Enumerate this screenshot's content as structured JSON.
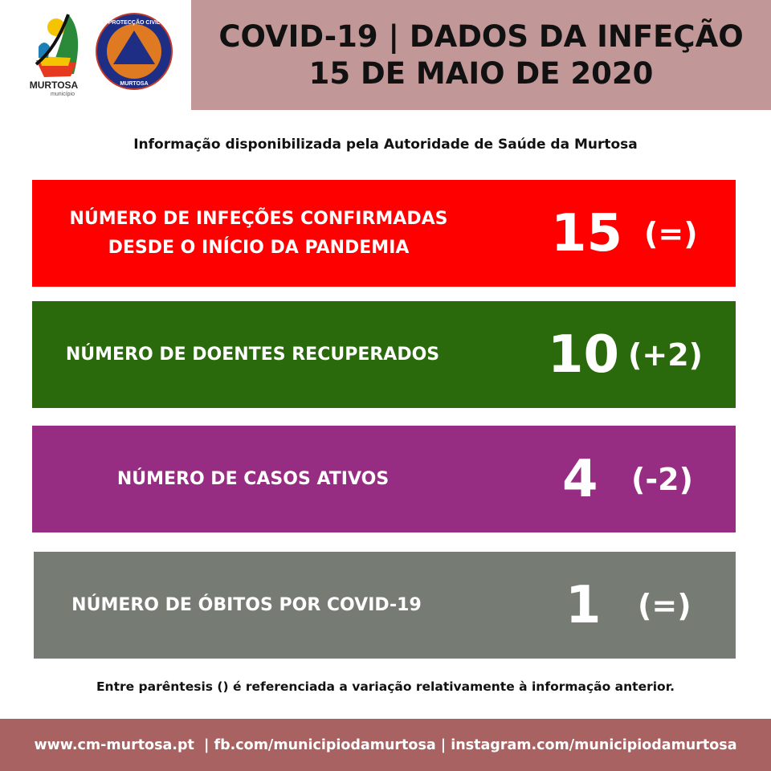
{
  "logos": {
    "municipio_name": "MURTOSA",
    "municipio_sub": "município",
    "civil_top": "PROTECÇÃO CIVIL",
    "civil_bottom": "MURTOSA"
  },
  "header": {
    "line1": "COVID-19 | DADOS DA INFEÇÃO",
    "line2": "15 DE MAIO DE 2020"
  },
  "subtitle": "Informação disponibilizada pela Autoridade de Saúde da Murtosa",
  "stats": [
    {
      "label1": "NÚMERO DE INFEÇÕES CONFIRMADAS",
      "label2": "DESDE O INÍCIO DA PANDEMIA",
      "value": "15",
      "change": "(=)",
      "color": "#fe0000"
    },
    {
      "label1": "NÚMERO DE DOENTES RECUPERADOS",
      "value": "10",
      "change": "(+2)",
      "color": "#2b6a0c"
    },
    {
      "label1": "NÚMERO DE CASOS ATIVOS",
      "value": "4",
      "change": "(-2)",
      "color": "#962d82"
    },
    {
      "label1": "NÚMERO DE ÓBITOS POR COVID-19",
      "value": "1",
      "change": "(=)",
      "color": "#767b73"
    }
  ],
  "note": "Entre parêntesis () é referenciada a variação relativamente à informação anterior.",
  "footer": "www.cm-murtosa.pt  | fb.com/municipiodamurtosa | instagram.com/municipiodamurtosa"
}
